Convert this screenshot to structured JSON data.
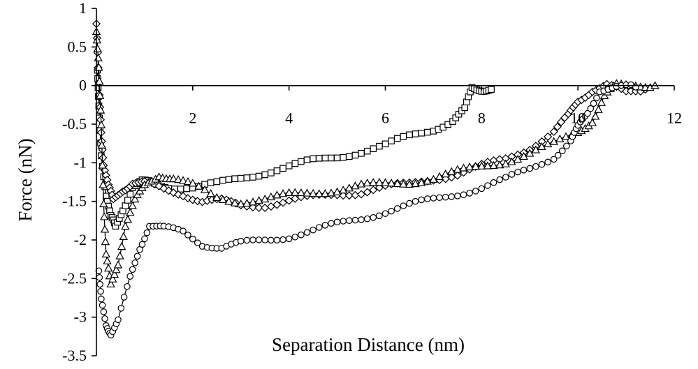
{
  "chart_data": {
    "type": "scatter",
    "xlabel": "Separation Distance (nm)",
    "ylabel": "Force (nN)",
    "xlim": [
      0,
      12
    ],
    "ylim": [
      -3.5,
      1
    ],
    "xticks": [
      "2",
      "4",
      "6",
      "8",
      "10",
      "12"
    ],
    "yticks": [
      "1",
      "0.5",
      "0",
      "-0.5",
      "-1",
      "-1.5",
      "-2",
      "-2.5",
      "-3",
      "-3.5"
    ],
    "grid": false,
    "legend": "none",
    "series": [
      {
        "marker": "square",
        "points": [
          [
            0.02,
            0.2
          ],
          [
            0.05,
            -0.3
          ],
          [
            0.1,
            -0.9
          ],
          [
            0.2,
            -1.4
          ],
          [
            0.3,
            -1.7
          ],
          [
            0.4,
            -1.85
          ],
          [
            0.55,
            -1.6
          ],
          [
            0.75,
            -1.3
          ],
          [
            0.95,
            -1.25
          ],
          [
            1.2,
            -1.28
          ],
          [
            1.5,
            -1.3
          ],
          [
            2.0,
            -1.32
          ],
          [
            2.5,
            -1.28
          ],
          [
            3.0,
            -1.2
          ],
          [
            3.5,
            -1.12
          ],
          [
            4.0,
            -1.05
          ],
          [
            4.5,
            -0.98
          ],
          [
            5.0,
            -0.92
          ],
          [
            5.5,
            -0.85
          ],
          [
            6.0,
            -0.78
          ],
          [
            6.5,
            -0.66
          ],
          [
            7.0,
            -0.56
          ],
          [
            7.4,
            -0.45
          ],
          [
            7.65,
            -0.32
          ],
          [
            7.8,
            -0.03
          ],
          [
            8.0,
            -0.04
          ],
          [
            8.2,
            -0.05
          ]
        ]
      },
      {
        "marker": "diamond",
        "points": [
          [
            0.0,
            0.8
          ],
          [
            0.05,
            0.0
          ],
          [
            0.1,
            -0.6
          ],
          [
            0.15,
            -1.0
          ],
          [
            0.25,
            -1.3
          ],
          [
            0.35,
            -1.5
          ],
          [
            0.55,
            -1.35
          ],
          [
            0.75,
            -1.25
          ],
          [
            1.0,
            -1.27
          ],
          [
            1.4,
            -1.35
          ],
          [
            1.8,
            -1.4
          ],
          [
            2.2,
            -1.5
          ],
          [
            2.6,
            -1.5
          ],
          [
            3.0,
            -1.55
          ],
          [
            3.5,
            -1.55
          ],
          [
            4.0,
            -1.5
          ],
          [
            4.5,
            -1.45
          ],
          [
            5.0,
            -1.4
          ],
          [
            5.5,
            -1.38
          ],
          [
            6.0,
            -1.32
          ],
          [
            6.5,
            -1.28
          ],
          [
            7.0,
            -1.2
          ],
          [
            7.5,
            -1.15
          ],
          [
            8.0,
            -1.05
          ],
          [
            8.5,
            -0.95
          ],
          [
            9.0,
            -0.8
          ],
          [
            9.5,
            -0.6
          ],
          [
            9.8,
            -0.4
          ],
          [
            10.0,
            -0.2
          ],
          [
            10.3,
            -0.05
          ],
          [
            10.6,
            0.0
          ],
          [
            11.0,
            -0.1
          ],
          [
            11.4,
            -0.05
          ]
        ]
      },
      {
        "marker": "triangle",
        "points": [
          [
            0.0,
            0.7
          ],
          [
            0.05,
            0.2
          ],
          [
            0.1,
            -0.5
          ],
          [
            0.15,
            -1.5
          ],
          [
            0.2,
            -2.2
          ],
          [
            0.3,
            -2.6
          ],
          [
            0.45,
            -2.3
          ],
          [
            0.6,
            -1.8
          ],
          [
            0.8,
            -1.5
          ],
          [
            1.0,
            -1.3
          ],
          [
            1.3,
            -1.15
          ],
          [
            1.6,
            -1.2
          ],
          [
            2.0,
            -1.3
          ],
          [
            2.5,
            -1.45
          ],
          [
            3.0,
            -1.5
          ],
          [
            3.5,
            -1.48
          ],
          [
            4.0,
            -1.42
          ],
          [
            4.5,
            -1.38
          ],
          [
            5.0,
            -1.35
          ],
          [
            5.5,
            -1.3
          ],
          [
            6.0,
            -1.28
          ],
          [
            6.5,
            -1.25
          ],
          [
            7.0,
            -1.2
          ],
          [
            7.5,
            -1.12
          ],
          [
            8.0,
            -1.05
          ],
          [
            8.5,
            -0.98
          ],
          [
            9.0,
            -0.88
          ],
          [
            9.5,
            -0.76
          ],
          [
            10.0,
            -0.6
          ],
          [
            10.3,
            -0.45
          ],
          [
            10.55,
            -0.15
          ],
          [
            10.8,
            0.0
          ],
          [
            11.2,
            0.02
          ],
          [
            11.6,
            0.0
          ]
        ]
      },
      {
        "marker": "circle",
        "points": [
          [
            0.05,
            -2.4
          ],
          [
            0.1,
            -2.8
          ],
          [
            0.2,
            -3.1
          ],
          [
            0.3,
            -3.2
          ],
          [
            0.45,
            -3.05
          ],
          [
            0.7,
            -2.5
          ],
          [
            0.9,
            -2.1
          ],
          [
            1.1,
            -1.8
          ],
          [
            1.4,
            -1.85
          ],
          [
            1.8,
            -1.9
          ],
          [
            2.2,
            -2.05
          ],
          [
            2.6,
            -2.1
          ],
          [
            3.0,
            -2.05
          ],
          [
            3.5,
            -2.0
          ],
          [
            4.0,
            -1.95
          ],
          [
            4.5,
            -1.88
          ],
          [
            5.0,
            -1.8
          ],
          [
            5.5,
            -1.72
          ],
          [
            6.0,
            -1.63
          ],
          [
            6.5,
            -1.55
          ],
          [
            7.0,
            -1.48
          ],
          [
            7.5,
            -1.4
          ],
          [
            8.0,
            -1.32
          ],
          [
            8.5,
            -1.22
          ],
          [
            9.0,
            -1.08
          ],
          [
            9.5,
            -0.92
          ],
          [
            9.85,
            -0.72
          ],
          [
            10.0,
            -0.55
          ],
          [
            10.2,
            -0.35
          ],
          [
            10.45,
            -0.05
          ],
          [
            10.8,
            -0.03
          ],
          [
            11.2,
            -0.02
          ]
        ]
      }
    ]
  }
}
